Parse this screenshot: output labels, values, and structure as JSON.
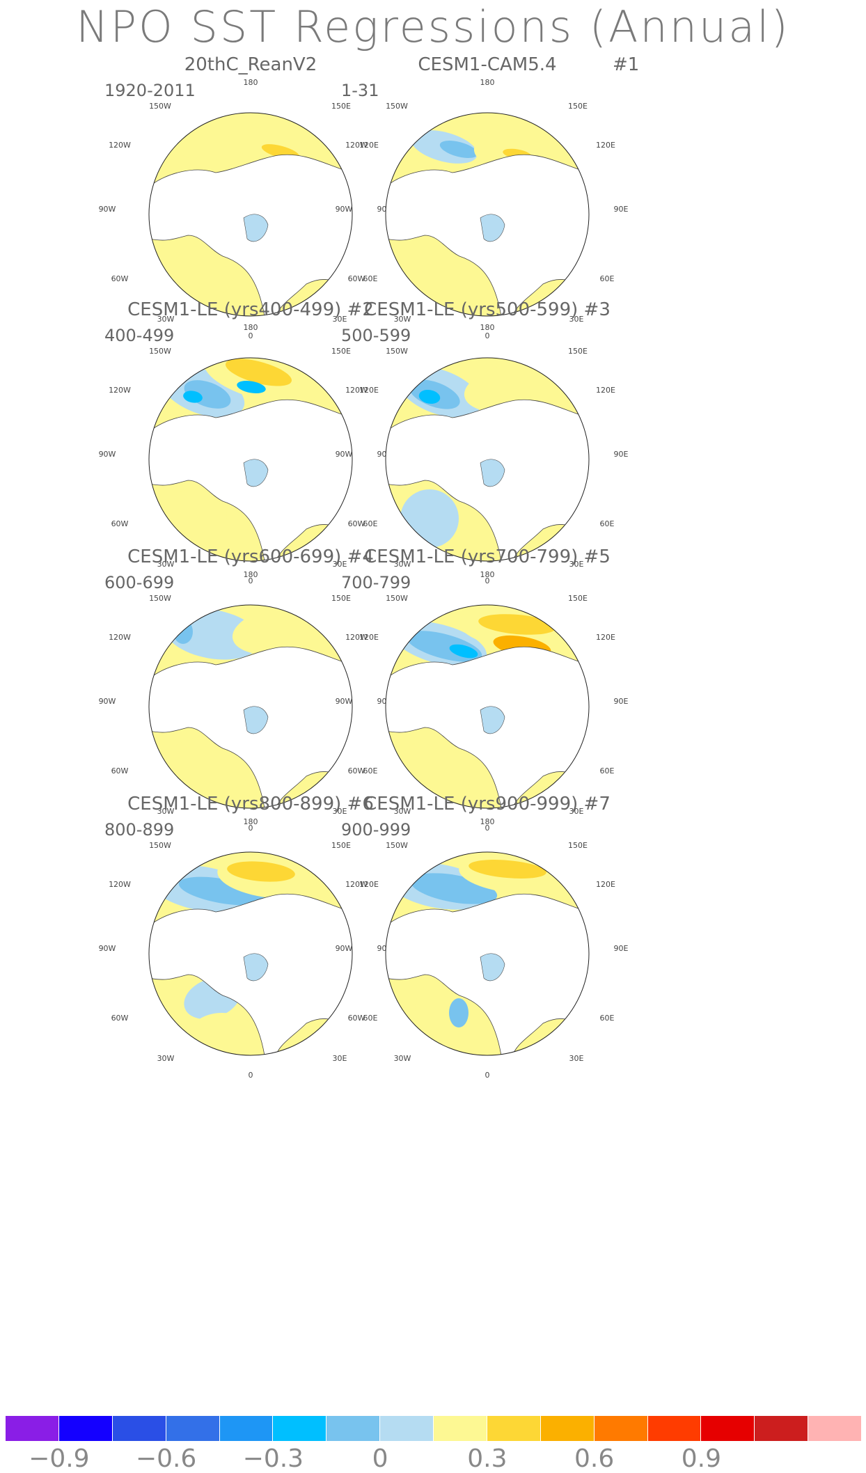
{
  "title": "NPO SST Regressions (Annual)",
  "colors": {
    "land": "#ffffff",
    "coast": "#444444",
    "neg_light": "#b5dcf2",
    "neg_mid": "#78c3ee",
    "neg_strong": "#00bfff",
    "pos_light": "#fdf893",
    "pos_mid": "#fdd735",
    "pos_strong": "#fbb000"
  },
  "longitude_labels": [
    "180",
    "150E",
    "120E",
    "90E",
    "60E",
    "30E",
    "0",
    "30W",
    "60W",
    "90W",
    "120W",
    "150W"
  ],
  "panels": [
    {
      "title": "20thC_ReanV2",
      "number": "",
      "period": "1920-2011"
    },
    {
      "title": "CESM1-CAM5.4",
      "number": "#1",
      "period": "1-31"
    },
    {
      "title": "CESM1-LE (yrs400-499) #2",
      "number": "",
      "period": "400-499"
    },
    {
      "title": "CESM1-LE (yrs500-599) #3",
      "number": "",
      "period": "500-599"
    },
    {
      "title": "CESM1-LE (yrs600-699) #4",
      "number": "",
      "period": "600-699"
    },
    {
      "title": "CESM1-LE (yrs700-799) #5",
      "number": "",
      "period": "700-799"
    },
    {
      "title": "CESM1-LE (yrs800-899) #6",
      "number": "",
      "period": "800-899"
    },
    {
      "title": "CESM1-LE (yrs900-999) #7",
      "number": "",
      "period": "900-999"
    }
  ],
  "colorbar": {
    "colors": [
      "#8a1ee6",
      "#1400ff",
      "#2a4fe6",
      "#3370e8",
      "#1e96f5",
      "#00bfff",
      "#78c3ee",
      "#b5dcf2",
      "#fdf893",
      "#fdd735",
      "#fbb000",
      "#ff7a00",
      "#ff3c00",
      "#e60000",
      "#cc1e1e",
      "#ffb3b3"
    ],
    "labels": [
      "−0.9",
      "−0.6",
      "−0.3",
      "0",
      "0.3",
      "0.6",
      "0.9"
    ]
  }
}
